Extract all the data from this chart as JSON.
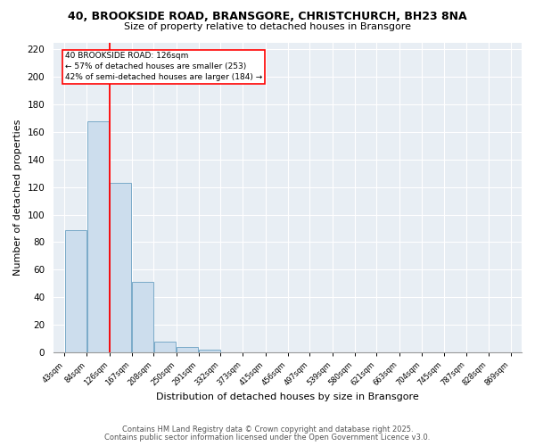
{
  "title_line1": "40, BROOKSIDE ROAD, BRANSGORE, CHRISTCHURCH, BH23 8NA",
  "title_line2": "Size of property relative to detached houses in Bransgore",
  "xlabel": "Distribution of detached houses by size in Bransgore",
  "ylabel": "Number of detached properties",
  "bar_edges": [
    43,
    84,
    126,
    167,
    208,
    250,
    291,
    332,
    373,
    415,
    456,
    497,
    539,
    580,
    621,
    663,
    704,
    745,
    787,
    828,
    869
  ],
  "bar_heights": [
    89,
    168,
    123,
    51,
    8,
    4,
    2,
    0,
    0,
    0,
    0,
    0,
    0,
    0,
    0,
    0,
    0,
    0,
    0,
    0
  ],
  "bar_color": "#ccdded",
  "bar_edge_color": "#7aaac8",
  "red_line_x": 126,
  "annotation_text": "40 BROOKSIDE ROAD: 126sqm\n← 57% of detached houses are smaller (253)\n42% of semi-detached houses are larger (184) →",
  "annotation_box_color": "white",
  "annotation_box_edge_color": "red",
  "ylim": [
    0,
    225
  ],
  "yticks": [
    0,
    20,
    40,
    60,
    80,
    100,
    120,
    140,
    160,
    180,
    200,
    220
  ],
  "bg_color": "#ffffff",
  "plot_bg_color": "#e8eef4",
  "grid_color": "#ffffff",
  "footer_line1": "Contains HM Land Registry data © Crown copyright and database right 2025.",
  "footer_line2": "Contains public sector information licensed under the Open Government Licence v3.0."
}
